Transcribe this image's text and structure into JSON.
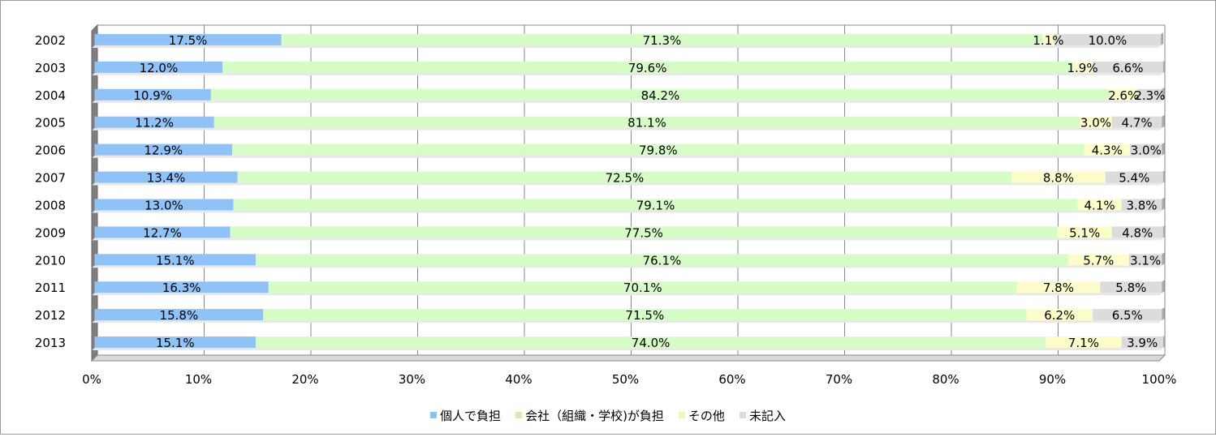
{
  "chart_data": {
    "type": "bar",
    "orientation": "horizontal",
    "stacked": "percent",
    "categories": [
      "2002",
      "2003",
      "2004",
      "2005",
      "2006",
      "2007",
      "2008",
      "2009",
      "2010",
      "2011",
      "2012",
      "2013"
    ],
    "series": [
      {
        "name": "個人で負担",
        "color": "#8fc3f7",
        "values": [
          17.5,
          12.0,
          10.9,
          11.2,
          12.9,
          13.4,
          13.0,
          12.7,
          15.1,
          16.3,
          15.8,
          15.1
        ],
        "labels": [
          "17.5%",
          "12.0%",
          "10.9%",
          "11.2%",
          "12.9%",
          "13.4%",
          "13.0%",
          "12.7%",
          "15.1%",
          "16.3%",
          "15.8%",
          "15.1%"
        ]
      },
      {
        "name": "会社（組織・学校)が負担",
        "color": "#d6fdc6",
        "values": [
          71.3,
          79.6,
          84.2,
          81.1,
          79.8,
          72.5,
          79.1,
          77.5,
          76.1,
          70.1,
          71.5,
          74.0
        ],
        "labels": [
          "71.3%",
          "79.6%",
          "84.2%",
          "81.1%",
          "79.8%",
          "72.5%",
          "79.1%",
          "77.5%",
          "76.1%",
          "70.1%",
          "71.5%",
          "74.0%"
        ]
      },
      {
        "name": "その他",
        "color": "#fdfdc9",
        "values": [
          1.1,
          1.9,
          2.6,
          3.0,
          4.3,
          8.8,
          4.1,
          5.1,
          5.7,
          7.8,
          6.2,
          7.1
        ],
        "labels": [
          "1.1%",
          "1.9%",
          "2.6%",
          "3.0%",
          "4.3%",
          "8.8%",
          "4.1%",
          "5.1%",
          "5.7%",
          "7.8%",
          "6.2%",
          "7.1%"
        ]
      },
      {
        "name": "未記入",
        "color": "#dcdcdc",
        "values": [
          10.0,
          6.6,
          2.3,
          4.7,
          3.0,
          5.4,
          3.8,
          4.8,
          3.1,
          5.8,
          6.5,
          3.9
        ],
        "labels": [
          "10.0%",
          "6.6%",
          "2.3%",
          "4.7%",
          "3.0%",
          "5.4%",
          "3.8%",
          "4.8%",
          "3.1%",
          "5.8%",
          "6.5%",
          "3.9%"
        ]
      }
    ],
    "x_ticks": [
      "0%",
      "10%",
      "20%",
      "30%",
      "40%",
      "50%",
      "60%",
      "70%",
      "80%",
      "90%",
      "100%"
    ],
    "xlim": [
      0,
      100
    ],
    "grid": true,
    "legend_position": "bottom"
  }
}
